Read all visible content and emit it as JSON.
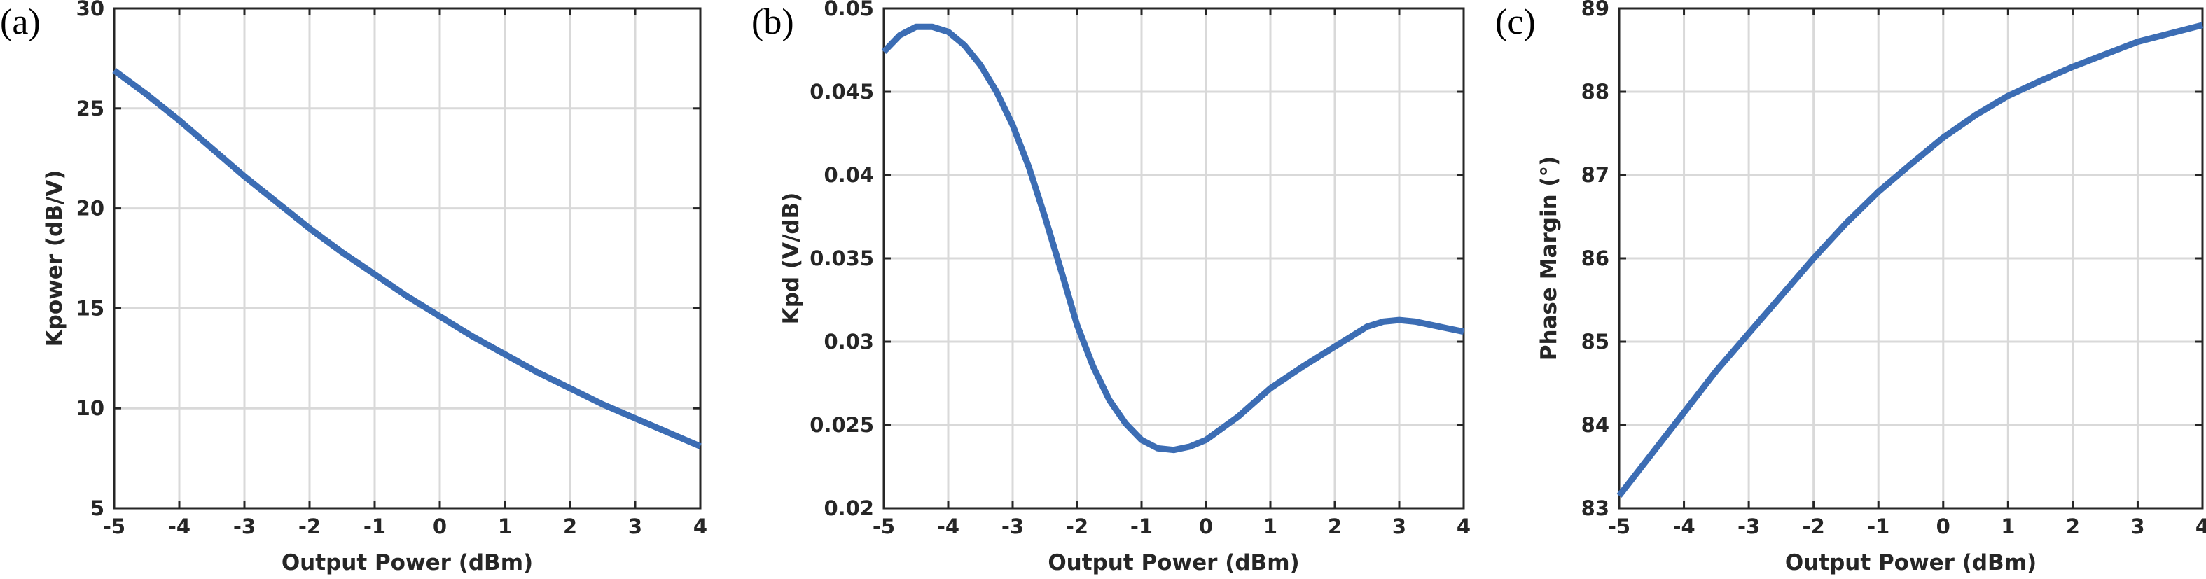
{
  "style": {
    "line_color": "#3c6db4",
    "grid_color": "#d9d9d9",
    "axis_color": "#262626"
  },
  "chart_data": [
    {
      "type": "line",
      "panel_label": "(a)",
      "xlabel": "Output Power (dBm)",
      "ylabel": "Kpower (dB/V)",
      "xlim": [
        -5,
        4
      ],
      "ylim": [
        5,
        30
      ],
      "xticks": [
        -5,
        -4,
        -3,
        -2,
        -1,
        0,
        1,
        2,
        3,
        4
      ],
      "yticks": [
        5,
        10,
        15,
        20,
        25,
        30
      ],
      "xtick_labels": [
        "-5",
        "-4",
        "-3",
        "-2",
        "-1",
        "0",
        "1",
        "2",
        "3",
        "4"
      ],
      "ytick_labels": [
        "5",
        "10",
        "15",
        "20",
        "25",
        "30"
      ],
      "grid": true,
      "series": [
        {
          "x": [
            -5,
            -4.5,
            -4,
            -3.5,
            -3,
            -2.5,
            -2,
            -1.5,
            -1,
            -0.5,
            0,
            0.5,
            1,
            1.5,
            2,
            2.5,
            3,
            3.5,
            4
          ],
          "y": [
            26.9,
            25.7,
            24.4,
            23.0,
            21.6,
            20.3,
            19.0,
            17.8,
            16.7,
            15.6,
            14.6,
            13.6,
            12.7,
            11.8,
            11.0,
            10.2,
            9.5,
            8.8,
            8.1
          ]
        }
      ]
    },
    {
      "type": "line",
      "panel_label": "(b)",
      "xlabel": "Output Power (dBm)",
      "ylabel": "Kpd (V/dB)",
      "xlim": [
        -5,
        4
      ],
      "ylim": [
        0.02,
        0.05
      ],
      "xticks": [
        -5,
        -4,
        -3,
        -2,
        -1,
        0,
        1,
        2,
        3,
        4
      ],
      "yticks": [
        0.02,
        0.025,
        0.03,
        0.035,
        0.04,
        0.045,
        0.05
      ],
      "xtick_labels": [
        "-5",
        "-4",
        "-3",
        "-2",
        "-1",
        "0",
        "1",
        "2",
        "3",
        "4"
      ],
      "ytick_labels": [
        "0.02",
        "0.025",
        "0.03",
        "0.035",
        "0.04",
        "0.045",
        "0.05"
      ],
      "grid": true,
      "series": [
        {
          "x": [
            -5,
            -4.75,
            -4.5,
            -4.25,
            -4,
            -3.75,
            -3.5,
            -3.25,
            -3,
            -2.75,
            -2.5,
            -2.25,
            -2,
            -1.75,
            -1.5,
            -1.25,
            -1,
            -0.75,
            -0.5,
            -0.25,
            0,
            0.5,
            1,
            1.5,
            2,
            2.25,
            2.5,
            2.75,
            3,
            3.25,
            3.5,
            3.75,
            4
          ],
          "y": [
            0.0474,
            0.0484,
            0.0489,
            0.0489,
            0.0486,
            0.0478,
            0.0466,
            0.045,
            0.043,
            0.0405,
            0.0375,
            0.0343,
            0.031,
            0.0285,
            0.0265,
            0.0251,
            0.0241,
            0.0236,
            0.0235,
            0.0237,
            0.0241,
            0.0255,
            0.0272,
            0.0285,
            0.0297,
            0.0303,
            0.0309,
            0.0312,
            0.0313,
            0.0312,
            0.031,
            0.0308,
            0.0306
          ]
        }
      ]
    },
    {
      "type": "line",
      "panel_label": "(c)",
      "xlabel": "Output Power (dBm)",
      "ylabel": "Phase Margin (°)",
      "xlim": [
        -5,
        4
      ],
      "ylim": [
        83,
        89
      ],
      "xticks": [
        -5,
        -4,
        -3,
        -2,
        -1,
        0,
        1,
        2,
        3,
        4
      ],
      "yticks": [
        83,
        84,
        85,
        86,
        87,
        88,
        89
      ],
      "xtick_labels": [
        "-5",
        "-4",
        "-3",
        "-2",
        "-1",
        "0",
        "1",
        "2",
        "3",
        "4"
      ],
      "ytick_labels": [
        "83",
        "84",
        "85",
        "86",
        "87",
        "88",
        "89"
      ],
      "grid": true,
      "series": [
        {
          "x": [
            -5,
            -4.5,
            -4,
            -3.5,
            -3,
            -2.5,
            -2,
            -1.5,
            -1,
            -0.5,
            0,
            0.5,
            1,
            1.5,
            2,
            2.5,
            3,
            3.5,
            4
          ],
          "y": [
            83.15,
            83.65,
            84.15,
            84.65,
            85.1,
            85.55,
            86.0,
            86.42,
            86.8,
            87.13,
            87.45,
            87.72,
            87.95,
            88.13,
            88.3,
            88.45,
            88.6,
            88.7,
            88.8
          ]
        }
      ]
    }
  ]
}
